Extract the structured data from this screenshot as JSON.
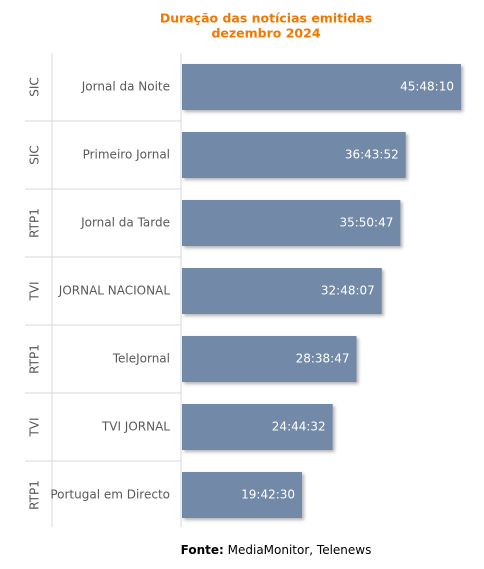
{
  "chart_data": {
    "type": "bar",
    "orientation": "horizontal",
    "title": "Duração das notícias emitidas",
    "subtitle": "dezembro 2024",
    "groups": [
      "SIC",
      "SIC",
      "RTP1",
      "TVI",
      "RTP1",
      "TVI",
      "RTP1"
    ],
    "categories": [
      "Jornal da Noite",
      "Primeiro Jornal",
      "Jornal da Tarde",
      "JORNAL NACIONAL",
      "TeleJornal",
      "TVI JORNAL",
      "Portugal em Directo"
    ],
    "values": [
      164890,
      132232,
      129047,
      118087,
      103127,
      89072,
      70950
    ],
    "value_labels": [
      "45:48:10",
      "36:43:52",
      "35:50:47",
      "32:48:07",
      "28:38:47",
      "24:44:32",
      "19:42:30"
    ],
    "color": "#7289a8",
    "source_label": "Fonte:",
    "source": "MediaMonitor, Telenews"
  }
}
